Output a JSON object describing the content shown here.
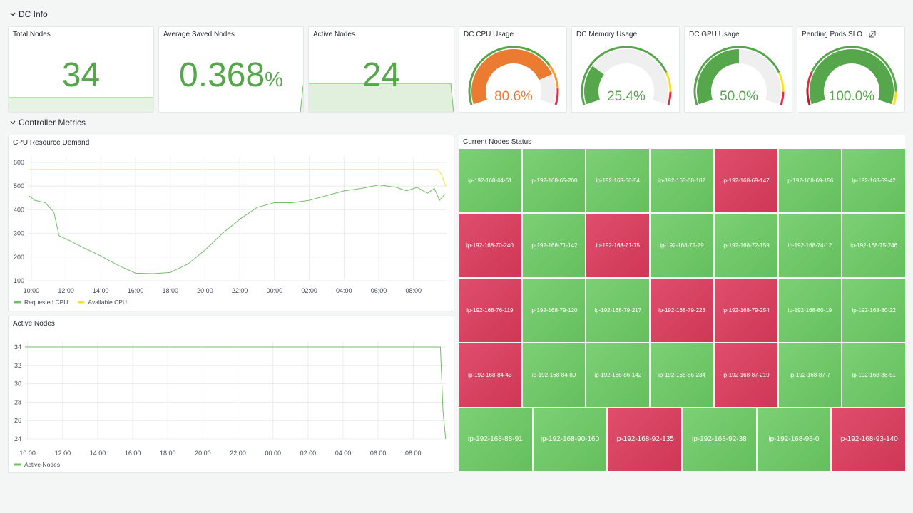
{
  "sections": [
    {
      "title": "DC Info"
    },
    {
      "title": "Controller Metrics"
    }
  ],
  "stats": [
    {
      "title": "Total Nodes",
      "value": 34
    },
    {
      "title": "Average Saved Nodes",
      "value": 0.368,
      "unit": "%"
    },
    {
      "title": "Active Nodes",
      "value": 24
    }
  ],
  "gauges": [
    {
      "title": "DC CPU Usage",
      "value": 80.6,
      "value_label": "80.6%",
      "color": "#eb7b30",
      "range": [
        0,
        100
      ],
      "thresholds": [
        {
          "from": 0,
          "color": "#56a64b"
        },
        {
          "from": 75,
          "color": "#ff9830"
        },
        {
          "from": 90,
          "color": "#e02f44"
        }
      ]
    },
    {
      "title": "DC Memory Usage",
      "value": 25.4,
      "value_label": "25.4%",
      "color": "#56a64b",
      "range": [
        0,
        100
      ],
      "thresholds": [
        {
          "from": 0,
          "color": "#56a64b"
        },
        {
          "from": 80,
          "color": "#fade2a"
        },
        {
          "from": 92,
          "color": "#e02f44"
        }
      ]
    },
    {
      "title": "DC GPU Usage",
      "value": 50.0,
      "value_label": "50.0%",
      "color": "#56a64b",
      "range": [
        0,
        100
      ],
      "thresholds": [
        {
          "from": 0,
          "color": "#56a64b"
        },
        {
          "from": 80,
          "color": "#fade2a"
        },
        {
          "from": 92,
          "color": "#e02f44"
        }
      ]
    },
    {
      "title": "Pending Pods SLO",
      "value": 100.0,
      "value_label": "100.0%",
      "color": "#56a64b",
      "range": [
        0,
        100
      ],
      "thresholds": [
        {
          "from": 0,
          "color": "#c4162a"
        },
        {
          "from": 10,
          "color": "#e02f44"
        },
        {
          "from": 20,
          "color": "#56a64b"
        },
        {
          "from": 92,
          "color": "#fade2a"
        }
      ]
    }
  ],
  "charts": [
    {
      "title": "CPU Resource Demand",
      "type": "line",
      "xlim": [
        9.8,
        33.9
      ],
      "xticks": [
        {
          "value": 10,
          "label": "10:00"
        },
        {
          "value": 12,
          "label": "12:00"
        },
        {
          "value": 14,
          "label": "14:00"
        },
        {
          "value": 16,
          "label": "16:00"
        },
        {
          "value": 18,
          "label": "18:00"
        },
        {
          "value": 20,
          "label": "20:00"
        },
        {
          "value": 22,
          "label": "22:00"
        },
        {
          "value": 24,
          "label": "00:00"
        },
        {
          "value": 26,
          "label": "02:00"
        },
        {
          "value": 28,
          "label": "04:00"
        },
        {
          "value": 30,
          "label": "06:00"
        },
        {
          "value": 32,
          "label": "08:00"
        }
      ],
      "ylim": [
        100,
        600
      ],
      "yticks": [
        100,
        200,
        300,
        400,
        500,
        600
      ],
      "series": [
        {
          "name": "Requested CPU",
          "color": "#73bf69",
          "x": [
            9.85,
            10.2,
            10.8,
            11.3,
            11.6,
            12.2,
            13,
            14,
            15,
            16,
            17,
            18,
            19,
            20,
            21,
            22,
            23,
            24,
            25,
            26,
            27,
            28,
            29,
            30,
            31,
            31.6,
            32.2,
            32.8,
            33.2,
            33.5,
            33.8
          ],
          "values": [
            460,
            440,
            430,
            390,
            290,
            270,
            240,
            205,
            165,
            132,
            130,
            135,
            170,
            230,
            300,
            360,
            410,
            430,
            430,
            440,
            460,
            480,
            490,
            505,
            495,
            480,
            495,
            470,
            490,
            440,
            465
          ]
        },
        {
          "name": "Available CPU",
          "color": "#fade2a",
          "x": [
            9.85,
            33.4,
            33.6,
            33.85
          ],
          "values": [
            570,
            570,
            550,
            500
          ]
        }
      ]
    },
    {
      "title": "Active Nodes",
      "type": "line",
      "xlim": [
        9.85,
        33.9
      ],
      "xticks": [
        {
          "value": 10,
          "label": "10:00"
        },
        {
          "value": 12,
          "label": "12:00"
        },
        {
          "value": 14,
          "label": "14:00"
        },
        {
          "value": 16,
          "label": "16:00"
        },
        {
          "value": 18,
          "label": "18:00"
        },
        {
          "value": 20,
          "label": "20:00"
        },
        {
          "value": 22,
          "label": "22:00"
        },
        {
          "value": 24,
          "label": "00:00"
        },
        {
          "value": 26,
          "label": "02:00"
        },
        {
          "value": 28,
          "label": "04:00"
        },
        {
          "value": 30,
          "label": "06:00"
        },
        {
          "value": 32,
          "label": "08:00"
        }
      ],
      "ylim": [
        24,
        34
      ],
      "yticks": [
        24,
        26,
        28,
        30,
        32,
        34
      ],
      "series": [
        {
          "name": "Active Nodes",
          "color": "#73bf69",
          "x": [
            9.85,
            33.55,
            33.7,
            33.85
          ],
          "values": [
            34,
            34,
            27,
            24
          ]
        }
      ]
    }
  ],
  "node_status": {
    "title": "Current Nodes Status",
    "nodes": [
      {
        "label": "ip-192-168-64-61",
        "color": "#6ccb64"
      },
      {
        "label": "ip-192-168-65-200",
        "color": "#6ccb64"
      },
      {
        "label": "ip-192-168-66-54",
        "color": "#6ccb64"
      },
      {
        "label": "ip-192-168-68-182",
        "color": "#6ccb64"
      },
      {
        "label": "ip-192-168-69-147",
        "color": "#dc3a5c"
      },
      {
        "label": "ip-192-168-69-156",
        "color": "#6ccb64"
      },
      {
        "label": "ip-192-168-69-42",
        "color": "#6ccb64"
      },
      {
        "label": "ip-192-168-70-240",
        "color": "#dc3a5c"
      },
      {
        "label": "ip-192-168-71-142",
        "color": "#6ccb64"
      },
      {
        "label": "ip-192-168-71-75",
        "color": "#dc3a5c"
      },
      {
        "label": "ip-192-168-71-79",
        "color": "#6ccb64"
      },
      {
        "label": "ip-192-168-72-159",
        "color": "#6ccb64"
      },
      {
        "label": "ip-192-168-74-12",
        "color": "#6ccb64"
      },
      {
        "label": "ip-192-168-75-246",
        "color": "#6ccb64"
      },
      {
        "label": "ip-192-168-76-119",
        "color": "#dc3a5c"
      },
      {
        "label": "ip-192-168-79-120",
        "color": "#6ccb64"
      },
      {
        "label": "ip-192-168-79-217",
        "color": "#6ccb64"
      },
      {
        "label": "ip-192-168-79-223",
        "color": "#dc3a5c"
      },
      {
        "label": "ip-192-168-79-254",
        "color": "#dc3a5c"
      },
      {
        "label": "ip-192-168-80-19",
        "color": "#6ccb64"
      },
      {
        "label": "ip-192-168-80-22",
        "color": "#6ccb64"
      },
      {
        "label": "ip-192-168-84-43",
        "color": "#dc3a5c"
      },
      {
        "label": "ip-192-168-84-89",
        "color": "#6ccb64"
      },
      {
        "label": "ip-192-168-86-142",
        "color": "#6ccb64"
      },
      {
        "label": "ip-192-168-86-234",
        "color": "#6ccb64"
      },
      {
        "label": "ip-192-168-87-219",
        "color": "#dc3a5c"
      },
      {
        "label": "ip-192-168-87-7",
        "color": "#6ccb64"
      },
      {
        "label": "ip-192-168-88-51",
        "color": "#6ccb64"
      },
      {
        "label": "ip-192-168-88-91",
        "color": "#6ccb64"
      },
      {
        "label": "ip-192-168-90-160",
        "color": "#6ccb64"
      },
      {
        "label": "ip-192-168-92-135",
        "color": "#dc3a5c"
      },
      {
        "label": "ip-192-168-92-38",
        "color": "#6ccb64"
      },
      {
        "label": "ip-192-168-93-0",
        "color": "#6ccb64"
      },
      {
        "label": "ip-192-168-93-140",
        "color": "#dc3a5c"
      }
    ]
  }
}
